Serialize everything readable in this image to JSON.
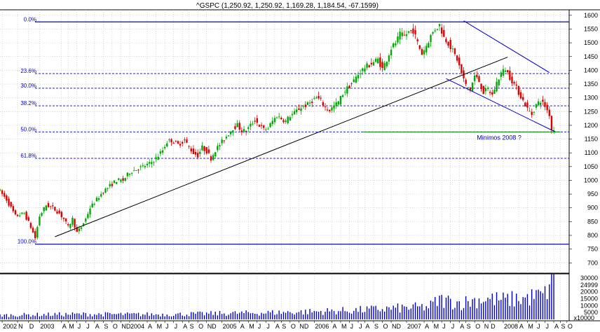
{
  "chart_data": {
    "type": "candlestick",
    "title": "^GSPC (1,250.92, 1,250.92, 1,169.28, 1,184.54, -67.1599)",
    "ylim": [
      688,
      1620
    ],
    "y_ticks": [
      700,
      750,
      800,
      850,
      900,
      950,
      1000,
      1050,
      1100,
      1150,
      1200,
      1250,
      1300,
      1350,
      1400,
      1450,
      1500,
      1550,
      1600
    ],
    "grid": true,
    "colors": {
      "up": "#00aa00",
      "down": "#dd0000",
      "fib": "#0000cc",
      "trend": "#000000",
      "support": "#008800",
      "volume": "#0000cc"
    },
    "fibonacci": [
      {
        "label": "0.0%",
        "value": 1576
      },
      {
        "label": "23.6%",
        "value": 1388
      },
      {
        "label": "30.0%",
        "value": 1335
      },
      {
        "label": "38.2%",
        "value": 1271
      },
      {
        "label": "50.0%",
        "value": 1176
      },
      {
        "label": "61.8%",
        "value": 1080
      },
      {
        "label": "100.0%",
        "value": 768
      }
    ],
    "price_points": [
      [
        0,
        970
      ],
      [
        4,
        930
      ],
      [
        8,
        870
      ],
      [
        12,
        880
      ],
      [
        15,
        830
      ],
      [
        17,
        790
      ],
      [
        19,
        870
      ],
      [
        22,
        910
      ],
      [
        25,
        900
      ],
      [
        28,
        880
      ],
      [
        30,
        860
      ],
      [
        32,
        830
      ],
      [
        34,
        860
      ],
      [
        36,
        810
      ],
      [
        38,
        830
      ],
      [
        40,
        860
      ],
      [
        42,
        900
      ],
      [
        45,
        930
      ],
      [
        48,
        960
      ],
      [
        51,
        980
      ],
      [
        54,
        1000
      ],
      [
        57,
        1000
      ],
      [
        60,
        1030
      ],
      [
        63,
        1040
      ],
      [
        66,
        1050
      ],
      [
        69,
        1060
      ],
      [
        72,
        1080
      ],
      [
        75,
        1110
      ],
      [
        77,
        1140
      ],
      [
        79,
        1145
      ],
      [
        82,
        1130
      ],
      [
        85,
        1145
      ],
      [
        87,
        1120
      ],
      [
        89,
        1100
      ],
      [
        91,
        1090
      ],
      [
        93,
        1120
      ],
      [
        95,
        1105
      ],
      [
        97,
        1080
      ],
      [
        99,
        1110
      ],
      [
        101,
        1130
      ],
      [
        103,
        1150
      ],
      [
        105,
        1170
      ],
      [
        107,
        1190
      ],
      [
        109,
        1200
      ],
      [
        111,
        1180
      ],
      [
        113,
        1180
      ],
      [
        115,
        1200
      ],
      [
        117,
        1220
      ],
      [
        119,
        1200
      ],
      [
        121,
        1185
      ],
      [
        123,
        1190
      ],
      [
        125,
        1215
      ],
      [
        127,
        1235
      ],
      [
        129,
        1225
      ],
      [
        131,
        1215
      ],
      [
        133,
        1235
      ],
      [
        135,
        1245
      ],
      [
        137,
        1260
      ],
      [
        139,
        1270
      ],
      [
        141,
        1275
      ],
      [
        143,
        1290
      ],
      [
        145,
        1300
      ],
      [
        147,
        1290
      ],
      [
        149,
        1265
      ],
      [
        151,
        1255
      ],
      [
        153,
        1270
      ],
      [
        155,
        1285
      ],
      [
        157,
        1315
      ],
      [
        159,
        1335
      ],
      [
        161,
        1350
      ],
      [
        163,
        1375
      ],
      [
        165,
        1395
      ],
      [
        167,
        1410
      ],
      [
        169,
        1420
      ],
      [
        171,
        1430
      ],
      [
        173,
        1440
      ],
      [
        175,
        1405
      ],
      [
        177,
        1440
      ],
      [
        179,
        1480
      ],
      [
        181,
        1500
      ],
      [
        183,
        1530
      ],
      [
        185,
        1525
      ],
      [
        187,
        1540
      ],
      [
        189,
        1545
      ],
      [
        191,
        1500
      ],
      [
        193,
        1460
      ],
      [
        195,
        1490
      ],
      [
        197,
        1525
      ],
      [
        199,
        1550
      ],
      [
        201,
        1565
      ],
      [
        203,
        1520
      ],
      [
        205,
        1500
      ],
      [
        207,
        1470
      ],
      [
        209,
        1440
      ],
      [
        211,
        1390
      ],
      [
        213,
        1345
      ],
      [
        215,
        1330
      ],
      [
        217,
        1380
      ],
      [
        219,
        1360
      ],
      [
        221,
        1320
      ],
      [
        223,
        1330
      ],
      [
        225,
        1310
      ],
      [
        227,
        1355
      ],
      [
        229,
        1390
      ],
      [
        231,
        1405
      ],
      [
        233,
        1375
      ],
      [
        235,
        1350
      ],
      [
        237,
        1320
      ],
      [
        239,
        1290
      ],
      [
        241,
        1260
      ],
      [
        243,
        1240
      ],
      [
        245,
        1275
      ],
      [
        247,
        1290
      ],
      [
        249,
        1270
      ],
      [
        251,
        1240
      ],
      [
        252,
        1185
      ]
    ],
    "x_range": [
      0,
      259
    ],
    "month_ticks": [
      {
        "label": "2002",
        "x": 1
      },
      {
        "label": "N",
        "x": 8
      },
      {
        "label": "D",
        "x": 13
      },
      {
        "label": "2003",
        "x": 18
      },
      {
        "label": "A",
        "x": 28
      },
      {
        "label": "M",
        "x": 31
      },
      {
        "label": "J",
        "x": 35
      },
      {
        "label": "J",
        "x": 39
      },
      {
        "label": "A",
        "x": 43
      },
      {
        "label": "S",
        "x": 47
      },
      {
        "label": "O",
        "x": 51
      },
      {
        "label": "ND",
        "x": 55
      },
      {
        "label": "2004",
        "x": 59
      },
      {
        "label": "A",
        "x": 67
      },
      {
        "label": "M",
        "x": 71
      },
      {
        "label": "J",
        "x": 75
      },
      {
        "label": "J",
        "x": 79
      },
      {
        "label": "A",
        "x": 83
      },
      {
        "label": "S",
        "x": 86
      },
      {
        "label": "O",
        "x": 90
      },
      {
        "label": "ND",
        "x": 94
      },
      {
        "label": "2005",
        "x": 101
      },
      {
        "label": "A",
        "x": 109
      },
      {
        "label": "M",
        "x": 113
      },
      {
        "label": "J",
        "x": 117
      },
      {
        "label": "J",
        "x": 121
      },
      {
        "label": "A",
        "x": 125
      },
      {
        "label": "S",
        "x": 128
      },
      {
        "label": "O",
        "x": 132
      },
      {
        "label": "ND",
        "x": 136
      },
      {
        "label": "2006",
        "x": 143
      },
      {
        "label": "A",
        "x": 151
      },
      {
        "label": "M",
        "x": 155
      },
      {
        "label": "J",
        "x": 159
      },
      {
        "label": "J",
        "x": 163
      },
      {
        "label": "A",
        "x": 166
      },
      {
        "label": "S",
        "x": 170
      },
      {
        "label": "O",
        "x": 174
      },
      {
        "label": "ND",
        "x": 178
      },
      {
        "label": "2007",
        "x": 185
      },
      {
        "label": "A",
        "x": 193
      },
      {
        "label": "M",
        "x": 197
      },
      {
        "label": "J",
        "x": 201
      },
      {
        "label": "J",
        "x": 205
      },
      {
        "label": "A",
        "x": 209
      },
      {
        "label": "S",
        "x": 212
      },
      {
        "label": "O",
        "x": 216
      },
      {
        "label": "N",
        "x": 220
      },
      {
        "label": "D",
        "x": 223
      },
      {
        "label": "2008",
        "x": 229
      },
      {
        "label": "A",
        "x": 236
      },
      {
        "label": "M",
        "x": 240
      },
      {
        "label": "J",
        "x": 244
      },
      {
        "label": "J",
        "x": 248
      },
      {
        "label": "A",
        "x": 252
      },
      {
        "label": "S",
        "x": 255
      },
      {
        "label": "O",
        "x": 258
      },
      {
        "label": "N",
        "x": 261
      }
    ],
    "trendlines": [
      {
        "name": "long-term-uptrend",
        "from": [
          25,
          795
        ],
        "to": [
          231,
          1448
        ]
      },
      {
        "name": "channel-upper",
        "from": [
          211,
          1580
        ],
        "to": [
          250,
          1392
        ]
      },
      {
        "name": "channel-lower",
        "from": [
          203,
          1370
        ],
        "to": [
          253,
          1175
        ]
      }
    ],
    "support_line": {
      "from": [
        165,
        1176
      ],
      "to": [
        255,
        1176
      ]
    },
    "annotation": {
      "text": "Minimos 2008 ?",
      "x": 217,
      "value": 1148
    },
    "volume": {
      "ticks": [
        30000,
        24999,
        20000,
        15000,
        10000,
        5000
      ],
      "bottom_label": "x10000",
      "max": 33000,
      "points": [
        [
          0,
          3000
        ],
        [
          20,
          3500
        ],
        [
          40,
          3800
        ],
        [
          60,
          3600
        ],
        [
          80,
          3700
        ],
        [
          100,
          4300
        ],
        [
          120,
          4800
        ],
        [
          140,
          5500
        ],
        [
          160,
          6500
        ],
        [
          180,
          8000
        ],
        [
          195,
          9000
        ],
        [
          200,
          14000
        ],
        [
          210,
          12000
        ],
        [
          220,
          15000
        ],
        [
          230,
          14000
        ],
        [
          240,
          15500
        ],
        [
          248,
          18000
        ],
        [
          252,
          33000
        ]
      ]
    }
  }
}
